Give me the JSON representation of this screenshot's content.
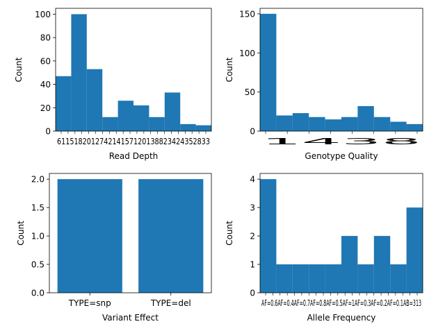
{
  "figure": {
    "bar_color": "#1f77b4",
    "axis_color": "#000000"
  },
  "chart_data": [
    {
      "type": "bar",
      "xlabel": "Read Depth",
      "ylabel": "Count",
      "ylim": [
        0,
        105
      ],
      "yticks": [
        0,
        20,
        40,
        60,
        80,
        100
      ],
      "xlim": [
        0,
        10
      ],
      "bins": [
        {
          "x0": 0.0,
          "x1": 1.0,
          "value": 47
        },
        {
          "x0": 1.0,
          "x1": 2.0,
          "value": 100
        },
        {
          "x0": 2.0,
          "x1": 3.0,
          "value": 53
        },
        {
          "x0": 3.0,
          "x1": 4.0,
          "value": 12
        },
        {
          "x0": 4.0,
          "x1": 5.0,
          "value": 26
        },
        {
          "x0": 5.0,
          "x1": 6.0,
          "value": 22
        },
        {
          "x0": 6.0,
          "x1": 7.0,
          "value": 12
        },
        {
          "x0": 7.0,
          "x1": 8.0,
          "value": 33
        },
        {
          "x0": 8.0,
          "x1": 9.0,
          "value": 6
        },
        {
          "x0": 9.0,
          "x1": 10.0,
          "value": 5
        }
      ],
      "xtick_label_overlap": "611518201274214157120138823424352833"
    },
    {
      "type": "bar",
      "xlabel": "Genotype Quality",
      "ylabel": "Count",
      "ylim": [
        0,
        157
      ],
      "yticks": [
        0,
        50,
        100,
        150
      ],
      "xlim": [
        0,
        10
      ],
      "bins": [
        {
          "x0": 0.0,
          "x1": 1.0,
          "value": 150
        },
        {
          "x0": 1.0,
          "x1": 2.0,
          "value": 20
        },
        {
          "x0": 2.0,
          "x1": 3.0,
          "value": 23
        },
        {
          "x0": 3.0,
          "x1": 4.0,
          "value": 18
        },
        {
          "x0": 4.0,
          "x1": 5.0,
          "value": 15
        },
        {
          "x0": 5.0,
          "x1": 6.0,
          "value": 18
        },
        {
          "x0": 6.0,
          "x1": 7.0,
          "value": 32
        },
        {
          "x0": 7.0,
          "x1": 8.0,
          "value": 18
        },
        {
          "x0": 8.0,
          "x1": 9.0,
          "value": 12
        },
        {
          "x0": 9.0,
          "x1": 10.0,
          "value": 9
        }
      ],
      "xtick_label_overlap": "1438"
    },
    {
      "type": "bar",
      "xlabel": "Variant Effect",
      "ylabel": "Count",
      "ylim": [
        0,
        2.1
      ],
      "yticks": [
        "0.0",
        "0.5",
        "1.0",
        "1.5",
        "2.0"
      ],
      "categories": [
        "TYPE=snp",
        "TYPE=del"
      ],
      "values": [
        2,
        2
      ]
    },
    {
      "type": "bar",
      "xlabel": "Allele Frequency",
      "ylabel": "Count",
      "ylim": [
        0,
        4.2
      ],
      "yticks": [
        0,
        1,
        2,
        3,
        4
      ],
      "xlim": [
        0,
        10
      ],
      "bins": [
        {
          "x0": 0.0,
          "x1": 1.0,
          "value": 4
        },
        {
          "x0": 1.0,
          "x1": 2.0,
          "value": 1
        },
        {
          "x0": 2.0,
          "x1": 3.0,
          "value": 1
        },
        {
          "x0": 3.0,
          "x1": 4.0,
          "value": 1
        },
        {
          "x0": 4.0,
          "x1": 5.0,
          "value": 1
        },
        {
          "x0": 5.0,
          "x1": 6.0,
          "value": 2
        },
        {
          "x0": 6.0,
          "x1": 7.0,
          "value": 1
        },
        {
          "x0": 7.0,
          "x1": 8.0,
          "value": 2
        },
        {
          "x0": 8.0,
          "x1": 9.0,
          "value": 1
        },
        {
          "x0": 9.0,
          "x1": 10.0,
          "value": 3
        }
      ],
      "xtick_label_overlap": "AF=0.6AF=0.4AF=0.7AF=0.8AF=0.5AF=1AF=0.3AF=0.2AF=0.1AB=313"
    }
  ]
}
